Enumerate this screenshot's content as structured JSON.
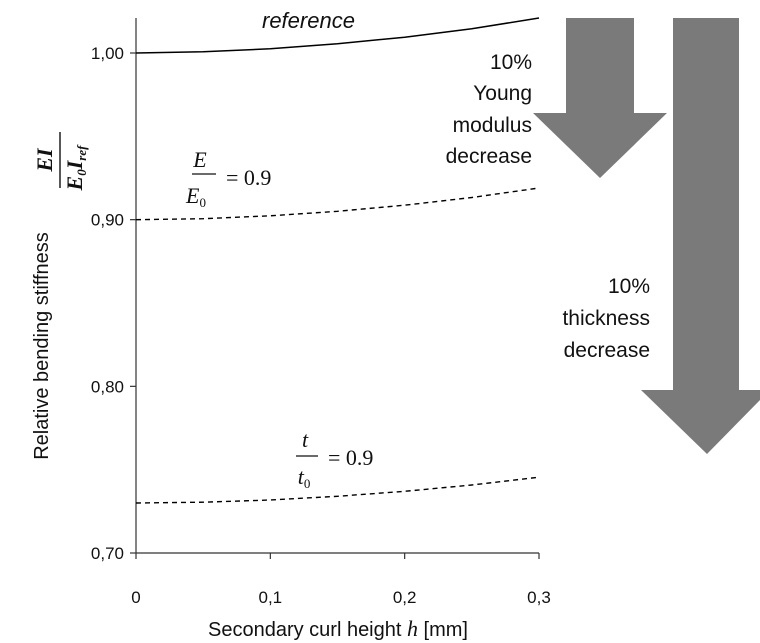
{
  "chart_data": {
    "type": "line",
    "xlabel_prefix": "Secondary curl height ",
    "xlabel_var": "h",
    "xlabel_unit": " [mm]",
    "ylabel": "Relative bending stiffness",
    "ylabel_formula": {
      "numerator": "EI",
      "denominator_main": "E",
      "denominator_sub0": "0",
      "denominator_I": "I",
      "denominator_subref": "ref"
    },
    "xlim": [
      0,
      0.3
    ],
    "ylim": [
      0.7,
      1.02
    ],
    "xticks": [
      0,
      0.1,
      0.2,
      0.3
    ],
    "xtick_labels": [
      "0",
      "0,1",
      "0,2",
      "0,3"
    ],
    "yticks": [
      0.7,
      0.8,
      0.9,
      1.0
    ],
    "ytick_labels": [
      "0,70",
      "0,80",
      "0,90",
      "1,00"
    ],
    "grid": false,
    "series": [
      {
        "name": "reference",
        "style": "solid",
        "x": [
          0,
          0.05,
          0.1,
          0.15,
          0.2,
          0.25,
          0.3
        ],
        "y": [
          1.0,
          1.0007,
          1.0025,
          1.0055,
          1.0095,
          1.0145,
          1.021
        ]
      },
      {
        "style": "dashed",
        "x": [
          0,
          0.05,
          0.1,
          0.15,
          0.2,
          0.25,
          0.3
        ],
        "y": [
          0.9,
          0.9006,
          0.9023,
          0.905,
          0.9087,
          0.9133,
          0.919
        ]
      },
      {
        "style": "dashed",
        "x": [
          0,
          0.05,
          0.1,
          0.15,
          0.2,
          0.25,
          0.3
        ],
        "y": [
          0.73,
          0.7305,
          0.7318,
          0.734,
          0.737,
          0.7408,
          0.7455
        ]
      }
    ],
    "formula_labels": [
      {
        "numerator": "E",
        "denominator": "E",
        "denominator_sub": "0",
        "rhs": "= 0.9"
      },
      {
        "numerator": "t",
        "denominator": "t",
        "denominator_sub": "0",
        "rhs": "= 0.9"
      }
    ],
    "annotations": [
      {
        "lines": [
          "10%",
          "Young",
          "modulus",
          "decrease"
        ]
      },
      {
        "lines": [
          "10%",
          "thickness",
          "decrease"
        ]
      }
    ],
    "colors": {
      "line": "#000000",
      "arrow": "#7a7a7a"
    }
  }
}
